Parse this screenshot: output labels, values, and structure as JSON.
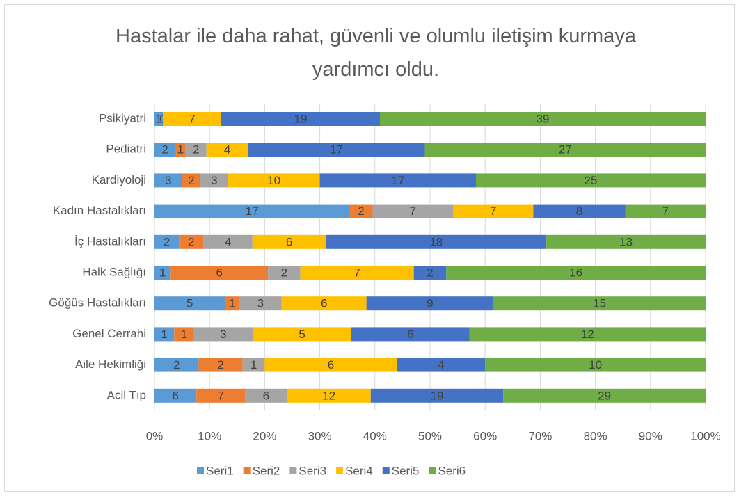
{
  "chart_data": {
    "type": "bar",
    "orientation": "horizontal",
    "stacking": "percent",
    "title": "Hastalar ile daha rahat, güvenli ve olumlu iletişim kurmaya yardımcı oldu.",
    "categories": [
      "Psikiyatri",
      "Pediatri",
      "Kardiyoloji",
      "Kadın Hastalıkları",
      "İç Hastalıkları",
      "Halk Sağlığı",
      "Göğüs Hastalıkları",
      "Genel Cerrahi",
      "Aile Hekimliği",
      "Acil Tıp"
    ],
    "series": [
      {
        "name": "Seri1",
        "color": "#5b9bd5",
        "values": [
          1,
          2,
          3,
          17,
          2,
          1,
          5,
          1,
          2,
          6
        ]
      },
      {
        "name": "Seri2",
        "color": "#ed7d31",
        "values": [
          0,
          1,
          2,
          2,
          2,
          6,
          1,
          1,
          2,
          7
        ]
      },
      {
        "name": "Seri3",
        "color": "#a5a5a5",
        "values": [
          0,
          2,
          3,
          7,
          4,
          2,
          3,
          3,
          1,
          6
        ]
      },
      {
        "name": "Seri4",
        "color": "#ffc000",
        "values": [
          7,
          4,
          10,
          7,
          6,
          7,
          6,
          5,
          6,
          12
        ]
      },
      {
        "name": "Seri5",
        "color": "#4472c4",
        "values": [
          19,
          17,
          17,
          8,
          18,
          2,
          9,
          6,
          4,
          19
        ]
      },
      {
        "name": "Seri6",
        "color": "#70ad47",
        "values": [
          39,
          27,
          25,
          7,
          13,
          16,
          15,
          12,
          10,
          29
        ]
      }
    ],
    "xlim": [
      0,
      100
    ],
    "xticks": [
      {
        "value": 0,
        "label": "0%"
      },
      {
        "value": 10,
        "label": "10%"
      },
      {
        "value": 20,
        "label": "20%"
      },
      {
        "value": 30,
        "label": "30%"
      },
      {
        "value": 40,
        "label": "40%"
      },
      {
        "value": 50,
        "label": "50%"
      },
      {
        "value": 60,
        "label": "60%"
      },
      {
        "value": 70,
        "label": "70%"
      },
      {
        "value": 80,
        "label": "80%"
      },
      {
        "value": 90,
        "label": "90%"
      },
      {
        "value": 100,
        "label": "100%"
      }
    ],
    "grid": true,
    "legend": "bottom"
  }
}
